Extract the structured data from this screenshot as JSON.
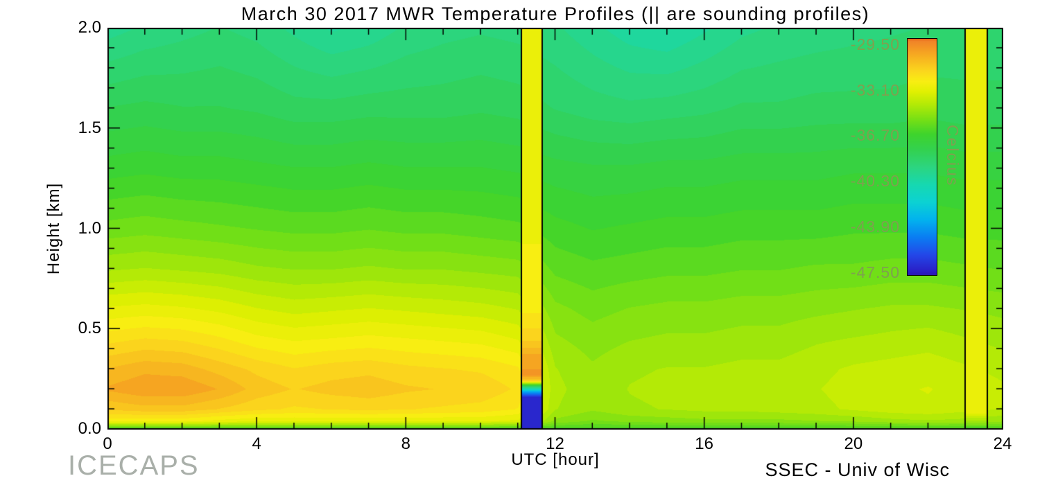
{
  "footer": {
    "left": "ICECAPS",
    "right": "SSEC - Univ of Wisc"
  },
  "chart_data": {
    "type": "heatmap",
    "title": "March 30 2017 MWR Temperature Profiles (|| are sounding profiles)",
    "xlabel": "UTC [hour]",
    "ylabel": "Height [km]",
    "xlim": [
      0,
      24
    ],
    "ylim": [
      0,
      2
    ],
    "xticks": {
      "values": [
        0,
        4,
        8,
        12,
        16,
        20,
        24
      ],
      "labels": [
        "0",
        "4",
        "8",
        "12",
        "16",
        "20",
        "24"
      ]
    },
    "yticks": {
      "values": [
        0,
        0.5,
        1,
        1.5,
        2
      ],
      "labels": [
        "0.0",
        "0.5",
        "1.0",
        "1.5",
        "2.0"
      ]
    },
    "x_hours": [
      0,
      1,
      2,
      3,
      4,
      5,
      6,
      7,
      8,
      9,
      10,
      11,
      12,
      13,
      14,
      15,
      16,
      17,
      18,
      19,
      20,
      21,
      22,
      23,
      24
    ],
    "heights_km": [
      0.0,
      0.04,
      0.1,
      0.2,
      0.3,
      0.45,
      0.6,
      0.8,
      1.0,
      1.3,
      1.6,
      2.0
    ],
    "temperature_c": [
      [
        -36.5,
        -36.5,
        -36.5,
        -36.5,
        -36.5,
        -36.5,
        -36.5,
        -36.5,
        -36.5,
        -36.5,
        -36.5,
        -36.5,
        -36.5,
        -36.5,
        -36.5,
        -36.5,
        -36.5,
        -36.5,
        -36.5,
        -36.5,
        -36.5,
        -36.5,
        -36.5,
        -36.5,
        -36.5
      ],
      [
        -32.5,
        -32.5,
        -32.5,
        -32.8,
        -33.0,
        -33.0,
        -33.0,
        -33.0,
        -33.0,
        -33.0,
        -33.0,
        -33.2,
        -35.0,
        -35.4,
        -35.2,
        -35.1,
        -35.0,
        -35.0,
        -35.0,
        -34.9,
        -34.8,
        -34.6,
        -34.5,
        -34.6,
        -34.8
      ],
      [
        -31.2,
        -31.0,
        -31.0,
        -31.3,
        -31.6,
        -31.8,
        -31.7,
        -31.6,
        -31.7,
        -31.8,
        -31.9,
        -32.2,
        -34.4,
        -34.8,
        -34.5,
        -34.4,
        -34.3,
        -34.3,
        -34.2,
        -34.1,
        -33.9,
        -33.7,
        -33.6,
        -33.8,
        -34.0
      ],
      [
        -30.3,
        -30.0,
        -30.0,
        -30.4,
        -31.0,
        -31.3,
        -31.1,
        -31.0,
        -31.2,
        -31.3,
        -31.4,
        -31.8,
        -34.3,
        -34.7,
        -34.4,
        -34.3,
        -34.3,
        -34.2,
        -34.2,
        -34.0,
        -33.8,
        -33.6,
        -33.5,
        -33.7,
        -33.9
      ],
      [
        -30.8,
        -30.5,
        -30.6,
        -31.0,
        -31.4,
        -31.7,
        -31.5,
        -31.4,
        -31.6,
        -31.7,
        -31.8,
        -32.1,
        -34.4,
        -34.8,
        -34.5,
        -34.4,
        -34.4,
        -34.3,
        -34.3,
        -34.1,
        -33.9,
        -33.8,
        -33.7,
        -33.9,
        -34.1
      ],
      [
        -31.9,
        -31.7,
        -31.8,
        -32.1,
        -32.5,
        -32.7,
        -32.6,
        -32.5,
        -32.6,
        -32.7,
        -32.8,
        -33.1,
        -34.8,
        -35.1,
        -34.9,
        -34.8,
        -34.8,
        -34.7,
        -34.7,
        -34.5,
        -34.4,
        -34.3,
        -34.2,
        -34.4,
        -34.6
      ],
      [
        -33.0,
        -32.9,
        -33.0,
        -33.2,
        -33.5,
        -33.7,
        -33.6,
        -33.5,
        -33.6,
        -33.7,
        -33.8,
        -34.0,
        -35.2,
        -35.5,
        -35.3,
        -35.2,
        -35.2,
        -35.1,
        -35.1,
        -35.0,
        -34.9,
        -34.8,
        -34.8,
        -34.9,
        -35.0
      ],
      [
        -34.5,
        -34.4,
        -34.5,
        -34.6,
        -34.8,
        -34.9,
        -34.9,
        -34.8,
        -34.9,
        -34.9,
        -35.0,
        -35.1,
        -35.9,
        -36.1,
        -36.0,
        -35.9,
        -35.9,
        -35.8,
        -35.8,
        -35.7,
        -35.7,
        -35.6,
        -35.6,
        -35.7,
        -35.8
      ],
      [
        -35.6,
        -35.5,
        -35.6,
        -35.7,
        -35.8,
        -35.9,
        -35.9,
        -35.8,
        -35.9,
        -35.9,
        -36.0,
        -36.1,
        -36.5,
        -36.7,
        -36.6,
        -36.5,
        -36.5,
        -36.4,
        -36.4,
        -36.4,
        -36.3,
        -36.3,
        -36.3,
        -36.4,
        -36.4
      ],
      [
        -36.9,
        -36.8,
        -36.9,
        -36.9,
        -37.0,
        -37.1,
        -37.1,
        -37.0,
        -37.1,
        -37.1,
        -37.1,
        -37.2,
        -37.4,
        -37.5,
        -37.5,
        -37.4,
        -37.4,
        -37.3,
        -37.3,
        -37.3,
        -37.2,
        -37.2,
        -37.2,
        -37.3,
        -37.3
      ],
      [
        -38.0,
        -37.9,
        -38.0,
        -38.0,
        -38.1,
        -38.3,
        -38.3,
        -38.2,
        -38.2,
        -38.2,
        -38.1,
        -38.2,
        -38.5,
        -38.7,
        -38.8,
        -38.7,
        -38.6,
        -38.4,
        -38.4,
        -38.3,
        -38.3,
        -38.3,
        -38.2,
        -38.3,
        -38.3
      ],
      [
        -39.6,
        -39.3,
        -39.1,
        -38.9,
        -39.1,
        -39.5,
        -39.9,
        -39.7,
        -39.3,
        -39.1,
        -39.0,
        -39.1,
        -39.3,
        -39.7,
        -40.1,
        -40.3,
        -39.9,
        -39.5,
        -39.3,
        -39.2,
        -39.1,
        -39.0,
        -38.9,
        -38.8,
        -38.8
      ]
    ],
    "soundings": [
      {
        "start_hour": 11.1,
        "end_hour": 11.65,
        "profile_heights_km": [
          0.0,
          0.16,
          0.19,
          0.215,
          0.24,
          0.27,
          0.36,
          0.45,
          0.6,
          1.0,
          2.0
        ],
        "profile_temps_c": [
          -47.3,
          -47.1,
          -43.0,
          -38.0,
          -31.5,
          -29.8,
          -30.2,
          -31.4,
          -32.3,
          -32.7,
          -32.9
        ]
      },
      {
        "start_hour": 23.0,
        "end_hour": 23.6,
        "profile_heights_km": [
          0.0,
          0.03,
          0.08,
          0.3,
          1.0,
          2.0
        ],
        "profile_temps_c": [
          -36.6,
          -35.0,
          -33.0,
          -32.7,
          -32.8,
          -32.9
        ]
      }
    ],
    "colorbar": {
      "unit": "Celcius",
      "tick_values": [
        -29.5,
        -33.1,
        -36.7,
        -40.3,
        -43.9,
        -47.5
      ],
      "tick_labels": [
        "-29.50",
        "-33.10",
        "-36.70",
        "-40.30",
        "-43.90",
        "-47.50"
      ]
    },
    "palette": [
      [
        -48.2,
        "#2a17b0"
      ],
      [
        -47.5,
        "#2a1fc6"
      ],
      [
        -46.2,
        "#2347e8"
      ],
      [
        -44.8,
        "#0a7df2"
      ],
      [
        -43.4,
        "#02b2ee"
      ],
      [
        -42.0,
        "#0cd2d2"
      ],
      [
        -40.6,
        "#16d8b0"
      ],
      [
        -39.2,
        "#2cd57f"
      ],
      [
        -37.8,
        "#33d14e"
      ],
      [
        -36.6,
        "#3ed42c"
      ],
      [
        -35.4,
        "#78e014"
      ],
      [
        -34.2,
        "#b4ea06"
      ],
      [
        -33.2,
        "#e1f002"
      ],
      [
        -32.4,
        "#f8ee12"
      ],
      [
        -31.6,
        "#fbd71d"
      ],
      [
        -30.8,
        "#f8bd1f"
      ],
      [
        -30.0,
        "#f5a022"
      ],
      [
        -29.2,
        "#f08428"
      ],
      [
        -28.2,
        "#e86418"
      ]
    ],
    "level_step": 0.45
  }
}
